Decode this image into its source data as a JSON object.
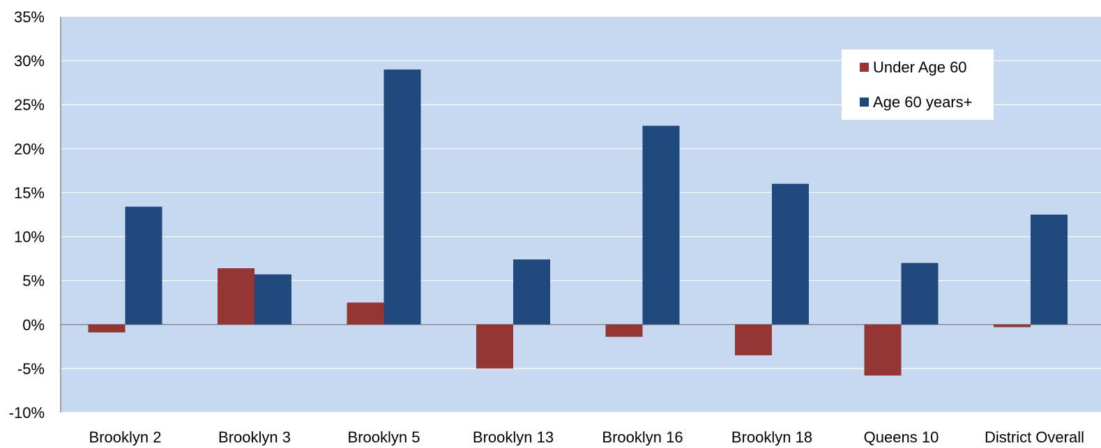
{
  "chart_data": {
    "type": "bar",
    "categories": [
      "Brooklyn 2",
      "Brooklyn 3",
      "Brooklyn 5",
      "Brooklyn 13",
      "Brooklyn 16",
      "Brooklyn 18",
      "Queens 10",
      "District Overall"
    ],
    "series": [
      {
        "name": "Under Age 60",
        "color": "#943634",
        "values": [
          -0.9,
          6.4,
          2.5,
          -5.0,
          -1.4,
          -3.5,
          -5.8,
          -0.3
        ]
      },
      {
        "name": "Age 60 years+",
        "color": "#1f497d",
        "values": [
          13.4,
          5.7,
          29.0,
          7.4,
          22.6,
          16.0,
          7.0,
          12.5
        ]
      }
    ],
    "yticks": [
      "-10%",
      "-5%",
      "0%",
      "5%",
      "10%",
      "15%",
      "20%",
      "25%",
      "30%",
      "35%"
    ],
    "ylim": [
      -10,
      35
    ],
    "grid": true,
    "legend_position": "top-right",
    "plot_background": "#c6d9f1"
  }
}
